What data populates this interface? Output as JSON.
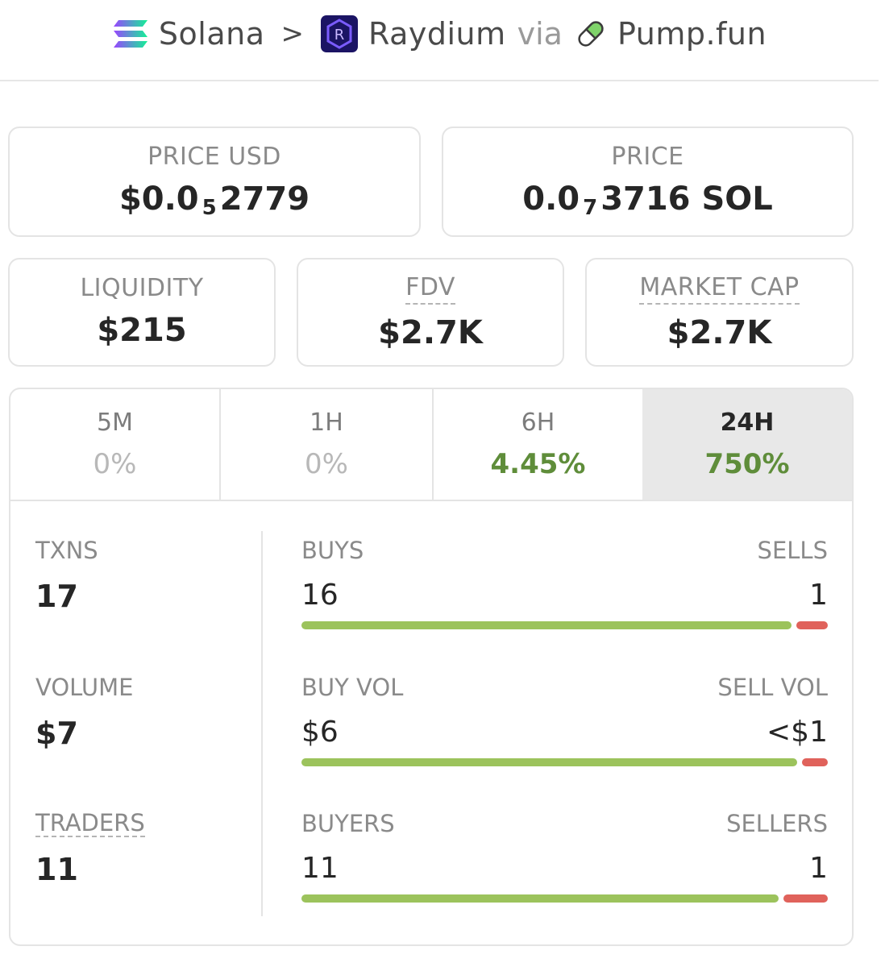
{
  "breadcrumb": {
    "chain": "Solana",
    "dex": "Raydium",
    "via": "via",
    "launchpad": "Pump.fun",
    "separator": ">"
  },
  "price_usd": {
    "label": "PRICE USD",
    "prefix": "$0.0",
    "zeros": "5",
    "digits": "2779"
  },
  "price_native": {
    "label": "PRICE",
    "prefix": "0.0",
    "zeros": "7",
    "digits": "3716 SOL"
  },
  "liquidity": {
    "label": "LIQUIDITY",
    "value": "$215"
  },
  "fdv": {
    "label": "FDV",
    "value": "$2.7K"
  },
  "market_cap": {
    "label": "MARKET CAP",
    "value": "$2.7K"
  },
  "timeframes": [
    {
      "label": "5M",
      "change": "0%",
      "positive": false
    },
    {
      "label": "1H",
      "change": "0%",
      "positive": false
    },
    {
      "label": "6H",
      "change": "4.45%",
      "positive": true
    },
    {
      "label": "24H",
      "change": "750%",
      "positive": true,
      "active": true
    }
  ],
  "stats": {
    "txns": {
      "label": "TXNS",
      "value": "17"
    },
    "volume": {
      "label": "VOLUME",
      "value": "$7"
    },
    "traders": {
      "label": "TRADERS",
      "value": "11"
    }
  },
  "splits": {
    "buys": {
      "left_label": "BUYS",
      "left_value": "16",
      "right_label": "SELLS",
      "right_value": "1",
      "buy_fraction": 0.94
    },
    "volume": {
      "left_label": "BUY VOL",
      "left_value": "$6",
      "right_label": "SELL VOL",
      "right_value": "<$1",
      "buy_fraction": 0.95
    },
    "traders": {
      "left_label": "BUYERS",
      "left_value": "11",
      "right_label": "SELLERS",
      "right_value": "1",
      "buy_fraction": 0.915
    }
  },
  "colors": {
    "positive": "#5f8d3a",
    "buy_bar": "#9cc35c",
    "sell_bar": "#e0625b"
  }
}
